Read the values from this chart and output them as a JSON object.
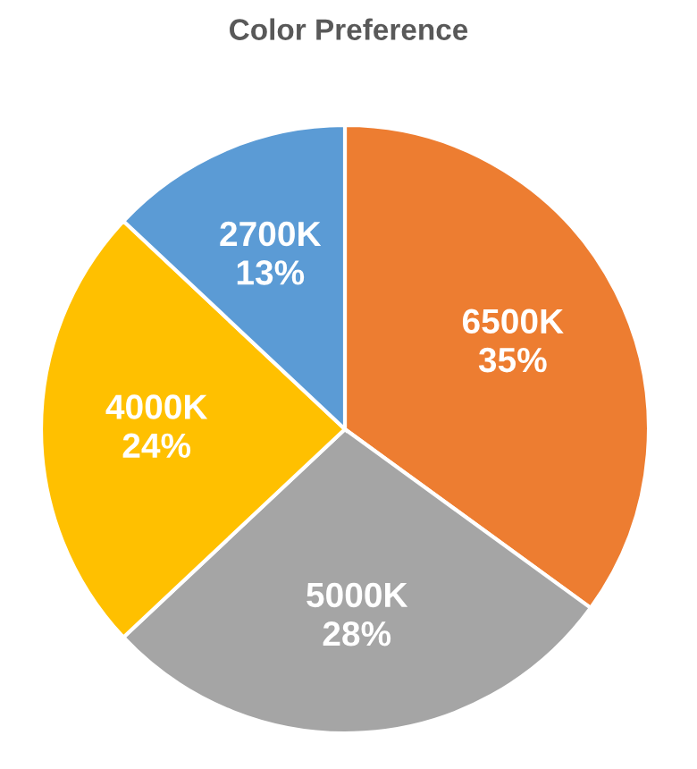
{
  "chart_data": {
    "type": "pie",
    "title": "Color Preference",
    "categories": [
      "6500K",
      "5000K",
      "4000K",
      "2700K"
    ],
    "values": [
      35,
      28,
      24,
      13
    ],
    "value_labels": [
      "35%",
      "28%",
      "24%",
      "13%"
    ],
    "colors": [
      "#ed7d31",
      "#a5a5a5",
      "#ffc000",
      "#5b9bd5"
    ],
    "legend": false
  }
}
